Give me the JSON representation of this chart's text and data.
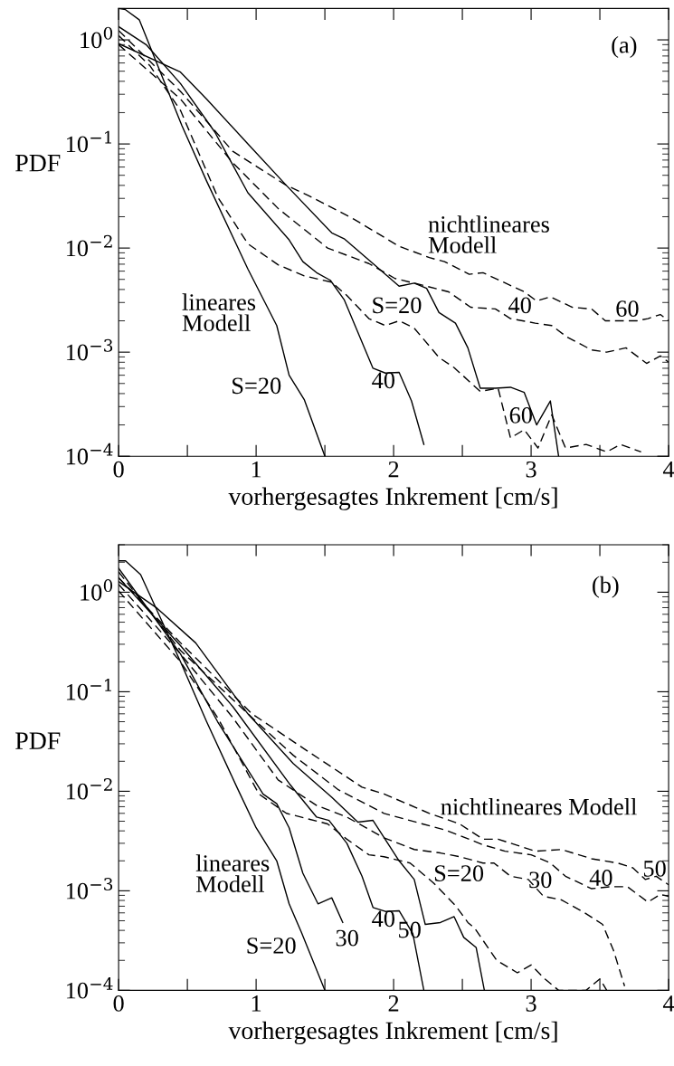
{
  "chart_data": [
    {
      "type": "line",
      "xlabel": "vorhergesagtes Inkrement [cm/s]",
      "ylabel": "PDF",
      "log": "y",
      "xlim": [
        0,
        4
      ],
      "ylim": [
        0.0001,
        2
      ],
      "xticks": [
        0,
        {
          "value": 0.5,
          "label": null
        },
        1,
        {
          "value": 1.5,
          "label": null
        },
        2,
        {
          "value": 2.5,
          "label": null
        },
        3,
        {
          "value": 3.5,
          "label": null
        },
        4
      ],
      "yticks": [
        {
          "value": 1,
          "label": "10$^{0}$"
        },
        {
          "value": 0.1,
          "label": "10$^{−1}$"
        },
        {
          "value": 0.01,
          "label": "10$^{−2}$"
        },
        {
          "value": 0.001,
          "label": "10$^{−3}$"
        },
        {
          "value": 0.0001,
          "label": "10$^{−4}$"
        }
      ],
      "series": [
        {
          "color": "#000000",
          "line_style": "solid",
          "x": [
            0,
            0.05,
            0.15,
            0.46,
            0.64,
            0.94,
            1.15,
            1.24,
            1.35,
            1.5
          ],
          "values": [
            2.0,
            1.95,
            1.56,
            0.15,
            0.044,
            0.0063,
            0.0018,
            0.0006,
            0.00035,
            0.0001
          ]
        },
        {
          "color": "#000000",
          "line_style": "solid",
          "x": [
            0,
            0.2,
            0.45,
            0.7,
            0.94,
            1.24,
            1.34,
            1.44,
            1.54,
            1.64,
            1.85,
            1.94,
            2.04,
            2.13,
            2.22
          ],
          "values": [
            1.34,
            0.9,
            0.38,
            0.13,
            0.034,
            0.012,
            0.0074,
            0.0058,
            0.0049,
            0.0032,
            0.0007,
            0.00063,
            0.00064,
            0.00034,
            0.00013
          ]
        },
        {
          "color": "#000000",
          "line_style": "solid",
          "x": [
            0,
            0.45,
            0.64,
            0.94,
            1.22,
            1.55,
            1.64,
            1.85,
            2.04,
            2.15,
            2.24,
            2.33,
            2.45,
            2.54,
            2.63,
            2.74,
            2.85,
            2.95,
            3.04,
            3.14,
            3.2
          ],
          "values": [
            0.92,
            0.49,
            0.27,
            0.1,
            0.04,
            0.014,
            0.0123,
            0.0071,
            0.0043,
            0.0046,
            0.0041,
            0.0024,
            0.0019,
            0.0011,
            0.00045,
            0.00045,
            0.00046,
            0.00041,
            0.0002,
            0.00034,
            0.0001
          ]
        },
        {
          "color": "#000000",
          "line_style": "dashed",
          "x": [
            0,
            0.23,
            0.45,
            0.72,
            0.94,
            1.16,
            1.35,
            1.55,
            1.66,
            1.82,
            1.94,
            2.04,
            2.15,
            2.33,
            2.44,
            2.63,
            2.76,
            2.85,
            2.95,
            3.05,
            3.15,
            3.25,
            3.4,
            3.55,
            3.65,
            3.8
          ],
          "values": [
            1.1,
            0.56,
            0.21,
            0.031,
            0.011,
            0.0069,
            0.0054,
            0.0047,
            0.0035,
            0.0021,
            0.0018,
            0.002,
            0.0017,
            0.00089,
            0.00071,
            0.00042,
            0.00045,
            0.00015,
            0.00018,
            0.00012,
            0.00025,
            0.00012,
            0.00013,
            0.00011,
            0.00013,
            0.00011
          ]
        },
        {
          "color": "#000000",
          "line_style": "dashed",
          "x": [
            0,
            0.45,
            0.83,
            1.16,
            1.52,
            1.82,
            2.01,
            2.21,
            2.4,
            2.56,
            2.74,
            2.85,
            3.03,
            3.15,
            3.26,
            3.44,
            3.55,
            3.69,
            3.84,
            3.94,
            4.0
          ],
          "values": [
            0.9,
            0.27,
            0.066,
            0.024,
            0.01,
            0.0071,
            0.0051,
            0.0044,
            0.0038,
            0.0027,
            0.0026,
            0.0021,
            0.0019,
            0.0018,
            0.0014,
            0.00105,
            0.001,
            0.0011,
            0.00078,
            0.00092,
            0.0008
          ]
        },
        {
          "color": "#000000",
          "line_style": "dashed",
          "x": [
            0,
            0.45,
            0.83,
            1.22,
            1.38,
            1.71,
            2.04,
            2.26,
            2.37,
            2.55,
            2.65,
            2.95,
            3.04,
            3.14,
            3.3,
            3.44,
            3.54,
            3.77,
            3.85,
            3.94,
            4.0
          ],
          "values": [
            1.23,
            0.32,
            0.085,
            0.04,
            0.032,
            0.019,
            0.0104,
            0.0081,
            0.0074,
            0.0056,
            0.0058,
            0.0038,
            0.0031,
            0.0034,
            0.0027,
            0.0026,
            0.002,
            0.002,
            0.0021,
            0.0023,
            0.002
          ]
        }
      ],
      "annotations": [
        "(a)",
        "nichtlineares\nModell",
        "lineares\nModell",
        {
          "text": "S=20",
          "x": 1.24,
          "y": 0.0006
        },
        {
          "text": "40",
          "x": 2.04,
          "y": 0.00064
        },
        {
          "text": "60",
          "x": 3.04,
          "y": 0.0002
        },
        {
          "text": "S=20",
          "x": 1.82,
          "y": 0.0021
        },
        {
          "text": "40",
          "x": 2.85,
          "y": 0.0021
        },
        {
          "text": "60",
          "x": 3.54,
          "y": 0.002
        }
      ]
    },
    {
      "type": "line",
      "xlabel": "vorhergesagtes Inkrement [cm/s]",
      "ylabel": "PDF",
      "log": "y",
      "xlim": [
        0,
        4
      ],
      "ylim": [
        0.0001,
        3
      ],
      "xticks": [
        0,
        {
          "value": 0.5,
          "label": null
        },
        1,
        {
          "value": 1.5,
          "label": null
        },
        2,
        {
          "value": 2.5,
          "label": null
        },
        3,
        {
          "value": 3.5,
          "label": null
        },
        4
      ],
      "yticks": [
        {
          "value": 1,
          "label": "10$^{0}$"
        },
        {
          "value": 0.1,
          "label": "10$^{−1}$"
        },
        {
          "value": 0.01,
          "label": "10$^{−2}$"
        },
        {
          "value": 0.001,
          "label": "10$^{−3}$"
        },
        {
          "value": 0.0001,
          "label": "10$^{−4}$"
        }
      ],
      "series": [
        {
          "color": "#000000",
          "line_style": "solid",
          "x": [
            0,
            0.05,
            0.16,
            0.45,
            0.64,
            0.86,
            1.0,
            1.15,
            1.24,
            1.33,
            1.5
          ],
          "values": [
            2.07,
            2.07,
            1.5,
            0.2,
            0.05,
            0.011,
            0.0043,
            0.002,
            0.00074,
            0.00038,
            0.0001
          ]
        },
        {
          "color": "#000000",
          "line_style": "solid",
          "x": [
            0,
            0.45,
            0.72,
            1.05,
            1.15,
            1.24,
            1.34,
            1.45,
            1.55,
            1.63
          ],
          "values": [
            1.74,
            0.24,
            0.05,
            0.0094,
            0.0075,
            0.0043,
            0.0015,
            0.00074,
            0.00085,
            0.00048
          ]
        },
        {
          "color": "#000000",
          "line_style": "solid",
          "x": [
            0,
            0.45,
            0.83,
            1.24,
            1.44,
            1.53,
            1.66,
            1.77,
            1.85,
            1.94,
            2.04,
            2.14,
            2.22
          ],
          "values": [
            1.4,
            0.29,
            0.071,
            0.012,
            0.0055,
            0.0051,
            0.003,
            0.0014,
            0.00068,
            0.00062,
            0.00063,
            0.00037,
            0.0001
          ]
        },
        {
          "color": "#000000",
          "line_style": "solid",
          "x": [
            0,
            0.28,
            0.56,
            0.94,
            1.27,
            1.55,
            1.74,
            1.85,
            2.04,
            2.15,
            2.23,
            2.34,
            2.44,
            2.51,
            2.6,
            2.66
          ],
          "values": [
            1.28,
            0.69,
            0.31,
            0.06,
            0.019,
            0.0087,
            0.0049,
            0.0051,
            0.002,
            0.0013,
            0.00046,
            0.00048,
            0.00055,
            0.00034,
            0.00027,
            0.0001
          ]
        },
        {
          "color": "#000000",
          "line_style": "dashed",
          "x": [
            0,
            0.45,
            0.72,
            1.02,
            1.22,
            1.52,
            1.66,
            1.82,
            1.93,
            2.12,
            2.29,
            2.45,
            2.54,
            2.59,
            2.75,
            2.9,
            3.0,
            3.1,
            3.2,
            3.4,
            3.5,
            3.55
          ],
          "values": [
            1.03,
            0.2,
            0.055,
            0.0094,
            0.006,
            0.0047,
            0.0033,
            0.0023,
            0.0022,
            0.0019,
            0.0012,
            0.00071,
            0.00048,
            0.00042,
            0.0002,
            0.00015,
            0.00018,
            0.00013,
            0.0001,
            0.0001,
            0.00013,
            0.0001
          ]
        },
        {
          "color": "#000000",
          "line_style": "dashed",
          "x": [
            0,
            0.45,
            0.83,
            1.16,
            1.44,
            1.66,
            1.93,
            2.15,
            2.34,
            2.48,
            2.65,
            2.73,
            2.85,
            2.98,
            3.09,
            3.22,
            3.39,
            3.52,
            3.6,
            3.68
          ],
          "values": [
            1.2,
            0.24,
            0.055,
            0.013,
            0.0072,
            0.0055,
            0.0034,
            0.0026,
            0.0024,
            0.0022,
            0.0019,
            0.0019,
            0.0014,
            0.0013,
            0.00088,
            0.00081,
            0.0006,
            0.00046,
            0.00025,
            0.00011
          ]
        },
        {
          "color": "#000000",
          "line_style": "dashed",
          "x": [
            0,
            0.45,
            0.97,
            1.27,
            1.6,
            1.93,
            2.21,
            2.37,
            2.48,
            2.65,
            2.81,
            3.0,
            3.14,
            3.25,
            3.44,
            3.58,
            3.7,
            3.85,
            3.94,
            4.0
          ],
          "values": [
            1.6,
            0.26,
            0.055,
            0.023,
            0.0103,
            0.006,
            0.0047,
            0.0041,
            0.0036,
            0.0029,
            0.0025,
            0.0023,
            0.0019,
            0.0014,
            0.00105,
            0.0011,
            0.0011,
            0.00077,
            0.00092,
            0.00088
          ]
        },
        {
          "color": "#000000",
          "line_style": "dashed",
          "x": [
            0,
            0.45,
            0.97,
            1.38,
            1.77,
            1.93,
            2.26,
            2.48,
            2.65,
            2.76,
            3.03,
            3.22,
            3.44,
            3.63,
            3.74,
            3.83,
            3.91,
            4.0
          ],
          "values": [
            1.4,
            0.31,
            0.06,
            0.025,
            0.011,
            0.0094,
            0.006,
            0.0047,
            0.0033,
            0.0033,
            0.0025,
            0.0026,
            0.0021,
            0.0019,
            0.0017,
            0.0013,
            0.0014,
            0.00115
          ]
        }
      ],
      "annotations": [
        "(b)",
        "nichtlineares Modell",
        "lineares\nModell",
        {
          "text": "S=20",
          "x": 1.33,
          "y": 0.00038
        },
        {
          "text": "30",
          "x": 1.63,
          "y": 0.00048
        },
        {
          "text": "40",
          "x": 2.04,
          "y": 0.00063
        },
        {
          "text": "50",
          "x": 2.23,
          "y": 0.00046
        },
        {
          "text": "S=20",
          "x": 2.29,
          "y": 0.0012
        },
        {
          "text": "30",
          "x": 2.98,
          "y": 0.0013
        },
        {
          "text": "40",
          "x": 3.44,
          "y": 0.00105
        },
        {
          "text": "50",
          "x": 3.83,
          "y": 0.0013
        }
      ]
    }
  ]
}
